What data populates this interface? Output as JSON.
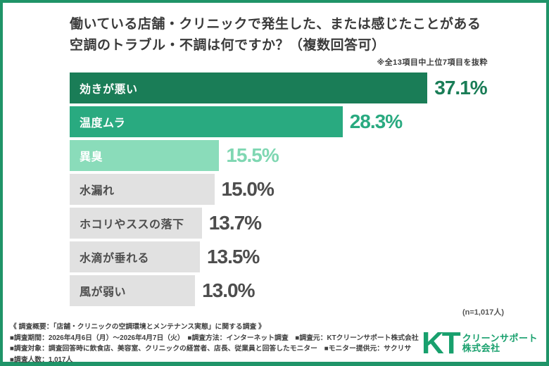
{
  "title": {
    "line1": "働いている店舗・クリニックで発生した、または感じたことがある",
    "line2": "空調のトラブル・不調は何ですか？（複数回答可）"
  },
  "note": "※全13項目中上位7項目を抜粋",
  "chart_data": {
    "type": "bar",
    "orientation": "horizontal",
    "title": "働いている店舗・クリニックで発生した、または感じたことがある空調のトラブル・不調は何ですか？（複数回答可）",
    "categories": [
      "効きが悪い",
      "温度ムラ",
      "異臭",
      "水漏れ",
      "ホコリやススの落下",
      "水滴が垂れる",
      "風が弱い"
    ],
    "values": [
      37.1,
      28.3,
      15.5,
      15.0,
      13.7,
      13.5,
      13.0
    ],
    "value_labels": [
      "37.1%",
      "28.3%",
      "15.5%",
      "15.0%",
      "13.7%",
      "13.5%",
      "13.0%"
    ],
    "unit": "%",
    "xlim": [
      0,
      40
    ],
    "grid": false,
    "bar_colors": [
      "#1a7d57",
      "#29aa80",
      "#8adcba",
      "#e1e1e1",
      "#e1e1e1",
      "#e1e1e1",
      "#e1e1e1"
    ],
    "label_colors": [
      "#ffffff",
      "#ffffff",
      "#ffffff",
      "#4d4d4d",
      "#4d4d4d",
      "#4d4d4d",
      "#4d4d4d"
    ],
    "value_colors": [
      "#1a7d57",
      "#29aa80",
      "#7fd7b2",
      "#4d4d4d",
      "#4d4d4d",
      "#4d4d4d",
      "#4d4d4d"
    ]
  },
  "sample_size": "(n=1,017人)",
  "footer": {
    "lines": [
      "《 調査概要：「店舗・クリニックの空調環境とメンテナンス実態」に関する調査 》",
      "■調査期間：2026年4月6日（月）～2026年4月7日（火）　■調査方法：インターネット調査　■調査元：KTクリーンサポート株式会社",
      "■調査対象：調査回答時に飲食店、美容室、クリニックの経営者、店長、従業員と回答したモニター　■モニター提供元：サクリサ",
      "■調査人数：1,017人"
    ]
  },
  "logo": {
    "initials": "KT",
    "line1": "クリーンサポート",
    "line2": "株式会社"
  },
  "colors": {
    "frame_border": "#1f9468",
    "logo_green": "#18a06d",
    "title_text": "#3a3a3a",
    "footer_text": "#3f3f3f",
    "bar_dark_green": "#1a7d57",
    "bar_mid_green": "#29aa80",
    "bar_light_green": "#8adcba",
    "bar_gray": "#e1e1e1"
  }
}
